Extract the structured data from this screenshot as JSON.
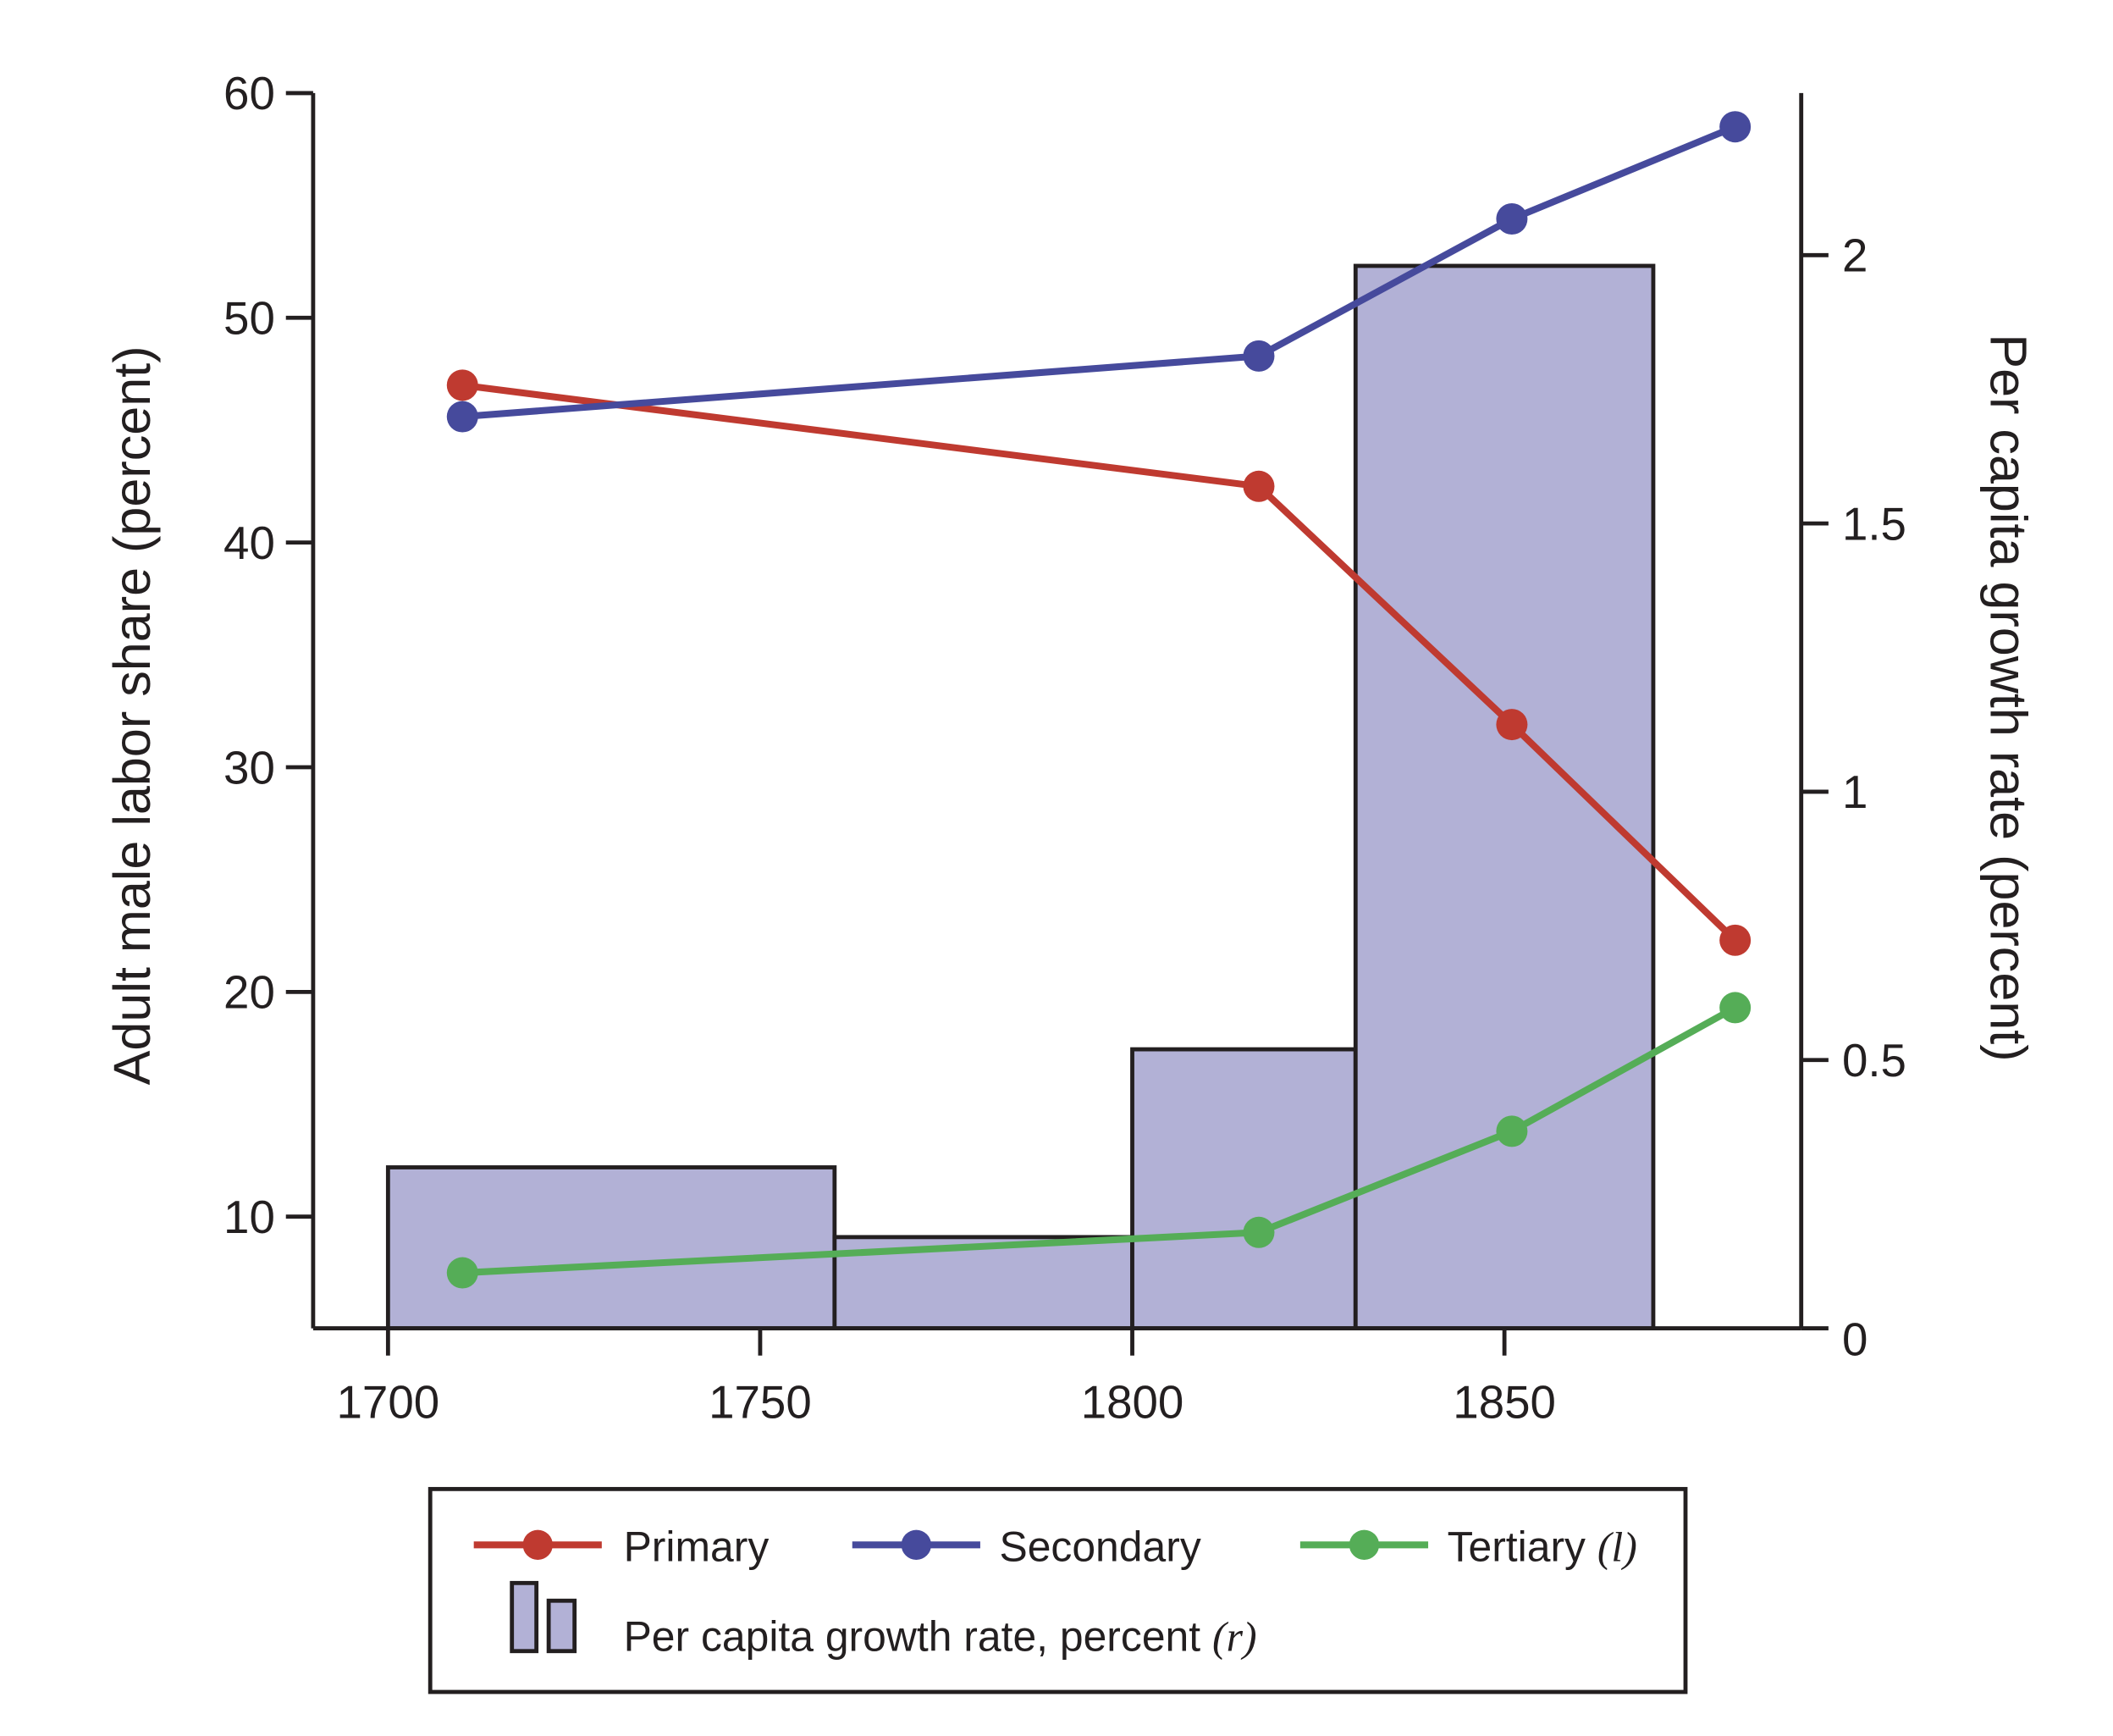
{
  "chart_data": {
    "type": "bar+line",
    "xlabel": "",
    "ylabel_left": "Adult male labor share (percent)",
    "ylabel_right": "Per capita growth rate (percent)",
    "xlim": [
      1690,
      1890
    ],
    "ylim_left": [
      5,
      60
    ],
    "ylim_right": [
      0,
      2.3
    ],
    "x_ticks": [
      1700,
      1750,
      1800,
      1850
    ],
    "y_left_ticks": [
      10,
      20,
      30,
      40,
      50,
      60
    ],
    "y_right_ticks": [
      0,
      0.5,
      1,
      1.5,
      2
    ],
    "y_right_tick_labels": [
      "0",
      "0.5",
      "1",
      "1.5",
      "2"
    ],
    "grid": false,
    "legend_position": "bottom",
    "bars": {
      "name": "Per capita growth rate, percent",
      "axis_symbol": "(r)",
      "color": "#b2b1d6",
      "bins": [
        {
          "start": 1700,
          "end": 1760,
          "value": 0.3
        },
        {
          "start": 1760,
          "end": 1800,
          "value": 0.17
        },
        {
          "start": 1800,
          "end": 1830,
          "value": 0.52
        },
        {
          "start": 1830,
          "end": 1870,
          "value": 1.98
        }
      ]
    },
    "series": [
      {
        "name": "Primary",
        "color": "#bf3a30",
        "x": [
          1710,
          1817,
          1851,
          1881
        ],
        "values": [
          47.0,
          42.5,
          31.9,
          22.3
        ]
      },
      {
        "name": "Secondary",
        "color": "#464a9c",
        "x": [
          1710,
          1817,
          1851,
          1881
        ],
        "values": [
          45.6,
          48.3,
          54.4,
          58.5
        ]
      },
      {
        "name": "Tertiary",
        "axis_symbol": "(l)",
        "color": "#55ad57",
        "x": [
          1710,
          1817,
          1851,
          1881
        ],
        "values": [
          7.5,
          9.3,
          13.8,
          19.3
        ]
      }
    ]
  }
}
